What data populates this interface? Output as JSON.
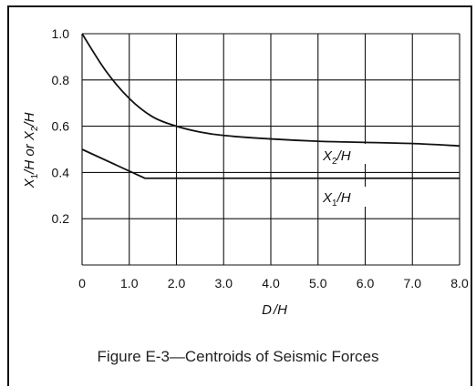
{
  "chart_data": {
    "type": "line",
    "title": "",
    "xlabel": "D /H",
    "ylabel": "X1/H or X2/H",
    "xlim": [
      0,
      8.0
    ],
    "ylim": [
      0,
      1.0
    ],
    "grid": true,
    "x_ticks": [
      "0",
      "1.0",
      "2.0",
      "3.0",
      "4.0",
      "5.0",
      "6.0",
      "7.0",
      "8.0"
    ],
    "y_ticks": [
      "1.0",
      "0.8",
      "0.6",
      "0.4",
      "0.2"
    ],
    "series": [
      {
        "name": "X2/H",
        "x": [
          0,
          0.5,
          1.0,
          1.5,
          2.0,
          2.5,
          3.0,
          4.0,
          5.0,
          6.0,
          7.0,
          8.0
        ],
        "y": [
          1.0,
          0.84,
          0.72,
          0.64,
          0.6,
          0.575,
          0.56,
          0.545,
          0.535,
          0.53,
          0.525,
          0.515
        ]
      },
      {
        "name": "X1/H",
        "x": [
          0,
          1.33,
          8.0
        ],
        "y": [
          0.5,
          0.375,
          0.375
        ]
      }
    ]
  },
  "caption": "Figure  E-3—Centroids of Seismic Forces"
}
